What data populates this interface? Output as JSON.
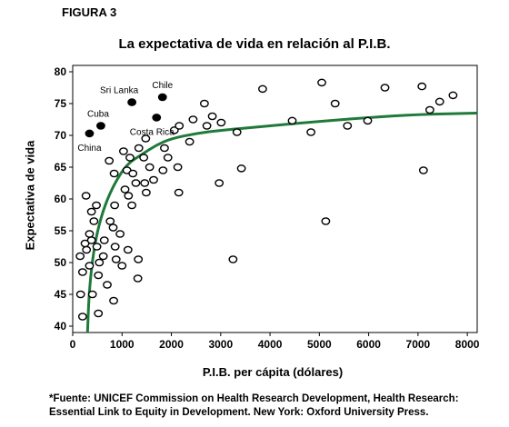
{
  "figure_label": "FIGURA 3",
  "source_note": {
    "line1": "*Fuente: UNICEF Commission on Health Research Development, Health Research:",
    "line2": "Essential Link to Equity in Development. New York: Oxford University Press."
  },
  "colors": {
    "trend_line": "#1f7a3a",
    "highlight_points": "#000000",
    "other_points": "#ffffff"
  },
  "chart_data": {
    "type": "scatter",
    "title": "La expectativa de vida en relación al P.I.B.",
    "xlabel": "P.I.B. per cápita (dólares)",
    "ylabel": "Expectativa de vida",
    "xlim": [
      0,
      8200
    ],
    "ylim": [
      39,
      81
    ],
    "xticks": [
      0,
      1000,
      2000,
      3000,
      4000,
      5000,
      6000,
      7000,
      8000
    ],
    "yticks": [
      40,
      45,
      50,
      55,
      60,
      65,
      70,
      75,
      80
    ],
    "grid": false,
    "legend": "none",
    "highlighted": [
      {
        "label": "Chile",
        "x": 1820,
        "y": 76
      },
      {
        "label": "Sri Lanka",
        "x": 1200,
        "y": 75.2
      },
      {
        "label": "Cuba",
        "x": 570,
        "y": 71.5
      },
      {
        "label": "Costa Rica",
        "x": 1700,
        "y": 72.8
      },
      {
        "label": "China",
        "x": 340,
        "y": 70.3
      }
    ],
    "points": [
      {
        "x": 200,
        "y": 41.5
      },
      {
        "x": 520,
        "y": 42
      },
      {
        "x": 830,
        "y": 44
      },
      {
        "x": 160,
        "y": 45
      },
      {
        "x": 400,
        "y": 45
      },
      {
        "x": 700,
        "y": 46.5
      },
      {
        "x": 520,
        "y": 48
      },
      {
        "x": 1320,
        "y": 47.5
      },
      {
        "x": 200,
        "y": 48.5
      },
      {
        "x": 340,
        "y": 49.5
      },
      {
        "x": 540,
        "y": 50
      },
      {
        "x": 1000,
        "y": 49.5
      },
      {
        "x": 150,
        "y": 51
      },
      {
        "x": 620,
        "y": 51
      },
      {
        "x": 880,
        "y": 50.5
      },
      {
        "x": 1330,
        "y": 50.5
      },
      {
        "x": 3250,
        "y": 50.5
      },
      {
        "x": 280,
        "y": 52
      },
      {
        "x": 490,
        "y": 52.5
      },
      {
        "x": 1120,
        "y": 52
      },
      {
        "x": 250,
        "y": 53
      },
      {
        "x": 380,
        "y": 53.5
      },
      {
        "x": 640,
        "y": 53.5
      },
      {
        "x": 860,
        "y": 52.5
      },
      {
        "x": 960,
        "y": 54.5
      },
      {
        "x": 340,
        "y": 54.5
      },
      {
        "x": 820,
        "y": 55.5
      },
      {
        "x": 430,
        "y": 56.5
      },
      {
        "x": 760,
        "y": 56.5
      },
      {
        "x": 5130,
        "y": 56.5
      },
      {
        "x": 380,
        "y": 58
      },
      {
        "x": 850,
        "y": 59
      },
      {
        "x": 480,
        "y": 59
      },
      {
        "x": 1200,
        "y": 59
      },
      {
        "x": 1130,
        "y": 60.5
      },
      {
        "x": 270,
        "y": 60.5
      },
      {
        "x": 2150,
        "y": 61
      },
      {
        "x": 1490,
        "y": 61
      },
      {
        "x": 1060,
        "y": 61.5
      },
      {
        "x": 2970,
        "y": 62.5
      },
      {
        "x": 1280,
        "y": 62.5
      },
      {
        "x": 1460,
        "y": 62.5
      },
      {
        "x": 1640,
        "y": 63
      },
      {
        "x": 840,
        "y": 64
      },
      {
        "x": 1100,
        "y": 64.5
      },
      {
        "x": 1220,
        "y": 64
      },
      {
        "x": 1560,
        "y": 65
      },
      {
        "x": 1830,
        "y": 64.5
      },
      {
        "x": 2130,
        "y": 65
      },
      {
        "x": 3420,
        "y": 64.8
      },
      {
        "x": 7110,
        "y": 64.5
      },
      {
        "x": 740,
        "y": 66
      },
      {
        "x": 1160,
        "y": 66.5
      },
      {
        "x": 1440,
        "y": 66.5
      },
      {
        "x": 1930,
        "y": 66.5
      },
      {
        "x": 1030,
        "y": 67.5
      },
      {
        "x": 1340,
        "y": 68
      },
      {
        "x": 1860,
        "y": 68
      },
      {
        "x": 2370,
        "y": 69
      },
      {
        "x": 1480,
        "y": 69.5
      },
      {
        "x": 2060,
        "y": 70.8
      },
      {
        "x": 3330,
        "y": 70.5
      },
      {
        "x": 4830,
        "y": 70.5
      },
      {
        "x": 2160,
        "y": 71.5
      },
      {
        "x": 2720,
        "y": 71.5
      },
      {
        "x": 3010,
        "y": 72
      },
      {
        "x": 5570,
        "y": 71.5
      },
      {
        "x": 2440,
        "y": 72.5
      },
      {
        "x": 2830,
        "y": 73
      },
      {
        "x": 4450,
        "y": 72.3
      },
      {
        "x": 5980,
        "y": 72.3
      },
      {
        "x": 7240,
        "y": 74
      },
      {
        "x": 2670,
        "y": 75
      },
      {
        "x": 5320,
        "y": 75
      },
      {
        "x": 7440,
        "y": 75.3
      },
      {
        "x": 7710,
        "y": 76.3
      },
      {
        "x": 3850,
        "y": 77.3
      },
      {
        "x": 6330,
        "y": 77.5
      },
      {
        "x": 7080,
        "y": 77.7
      },
      {
        "x": 5050,
        "y": 78.3
      }
    ],
    "trend_line": [
      {
        "x": 300,
        "y": 39
      },
      {
        "x": 330,
        "y": 45
      },
      {
        "x": 400,
        "y": 50.5
      },
      {
        "x": 500,
        "y": 55
      },
      {
        "x": 650,
        "y": 59
      },
      {
        "x": 850,
        "y": 62.5
      },
      {
        "x": 1100,
        "y": 65.5
      },
      {
        "x": 1400,
        "y": 67
      },
      {
        "x": 1700,
        "y": 68.5
      },
      {
        "x": 2000,
        "y": 69.5
      },
      {
        "x": 2500,
        "y": 70.3
      },
      {
        "x": 3000,
        "y": 70.8
      },
      {
        "x": 4000,
        "y": 71.5
      },
      {
        "x": 5000,
        "y": 72.2
      },
      {
        "x": 6000,
        "y": 72.8
      },
      {
        "x": 7000,
        "y": 73.3
      },
      {
        "x": 8200,
        "y": 73.5
      }
    ]
  }
}
